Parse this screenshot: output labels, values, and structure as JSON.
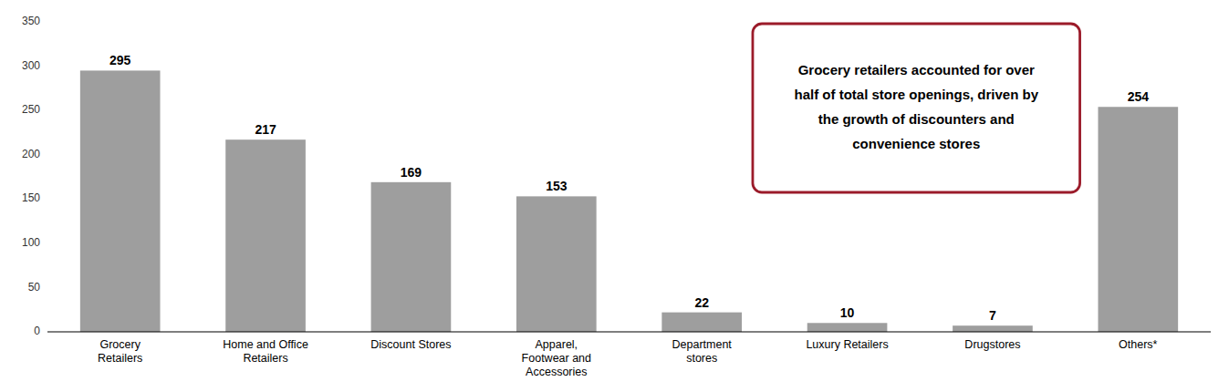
{
  "chart_data": {
    "type": "bar",
    "categories": [
      "Grocery\nRetailers",
      "Home and Office\nRetailers",
      "Discount Stores",
      "Apparel,\nFootwear and\nAccessories",
      "Department\nstores",
      "Luxury Retailers",
      "Drugstores",
      "Others*"
    ],
    "values": [
      295,
      217,
      169,
      153,
      22,
      10,
      7,
      254
    ],
    "color": "#9e9e9e",
    "ylim": [
      0,
      350
    ],
    "yticks": [
      0,
      50,
      100,
      150,
      200,
      250,
      300,
      350
    ],
    "grid": false,
    "data_labels": true,
    "annotation": "Grocery retailers accounted for over\nhalf of total store openings, driven by\nthe growth of discounters and\nconvenience stores"
  }
}
